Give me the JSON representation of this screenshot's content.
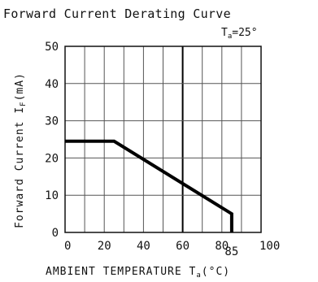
{
  "chart_data": {
    "type": "line",
    "title": "Forward Current Derating Curve",
    "condition": {
      "prefix": "T",
      "sub": "a",
      "suffix": "=25°"
    },
    "xlabel": {
      "prefix": "AMBIENT TEMPERATURE T",
      "sub": "a",
      "suffix": "(°C)"
    },
    "ylabel": {
      "prefix": "Forward Current I",
      "sub": "F",
      "suffix": "(mA)"
    },
    "xlim": [
      0,
      100
    ],
    "ylim": [
      0,
      50
    ],
    "x_ticks": [
      0,
      20,
      40,
      60,
      80,
      100
    ],
    "x_tick_labels": [
      "0",
      "20",
      "40",
      "60",
      "80",
      "100"
    ],
    "extra_x_tick_label": {
      "value": 85,
      "label": "85"
    },
    "y_ticks": [
      0,
      10,
      20,
      30,
      40,
      50
    ],
    "y_tick_labels": [
      "0",
      "10",
      "20",
      "30",
      "40",
      "50"
    ],
    "x_grid": [
      10,
      20,
      30,
      40,
      50,
      60,
      70,
      80,
      90
    ],
    "y_grid": [
      10,
      20,
      30,
      40
    ],
    "highlight_x": 60,
    "grid": true,
    "series": [
      {
        "x": [
          0,
          25,
          85,
          85
        ],
        "y": [
          24.5,
          24.5,
          5,
          0
        ]
      }
    ],
    "colors": {
      "line": "#000000",
      "grid": "#555555",
      "text": "#111111"
    }
  }
}
